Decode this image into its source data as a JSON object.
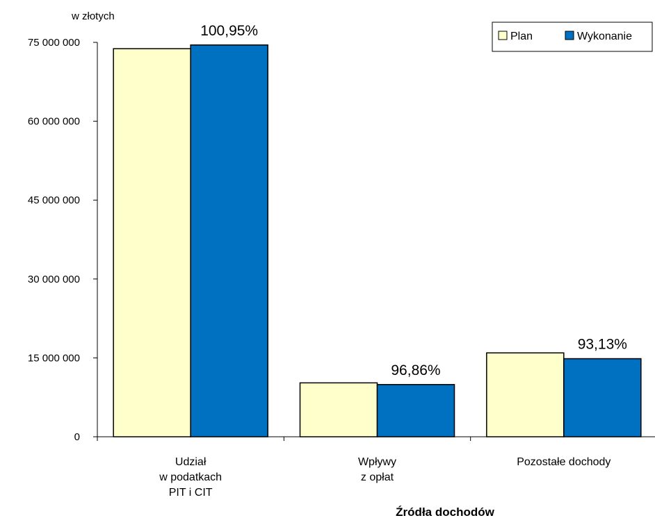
{
  "chart_data": {
    "type": "bar",
    "unit_label": "w złotych",
    "xlabel": "Źródła dochodów",
    "ylabel": "",
    "ylim": [
      0,
      75000000
    ],
    "yticks": [
      0,
      15000000,
      30000000,
      45000000,
      60000000,
      75000000
    ],
    "ytick_labels": [
      "0",
      "15 000 000",
      "30 000 000",
      "45 000 000",
      "60 000 000",
      "75 000 000"
    ],
    "categories": [
      [
        "Udział",
        "w podatkach",
        "PIT i CIT"
      ],
      [
        "Wpływy",
        "z opłat"
      ],
      [
        "Pozostałe dochody"
      ]
    ],
    "series": [
      {
        "name": "Plan",
        "color": "#ffffcc",
        "values": [
          73800000,
          10250000,
          15950000
        ]
      },
      {
        "name": "Wykonanie",
        "color": "#0070c0",
        "values": [
          74500000,
          9930000,
          14850000
        ]
      }
    ],
    "data_labels": [
      "100,95%",
      "96,86%",
      "93,13%"
    ],
    "legend_position": "top-right",
    "grid": false
  }
}
